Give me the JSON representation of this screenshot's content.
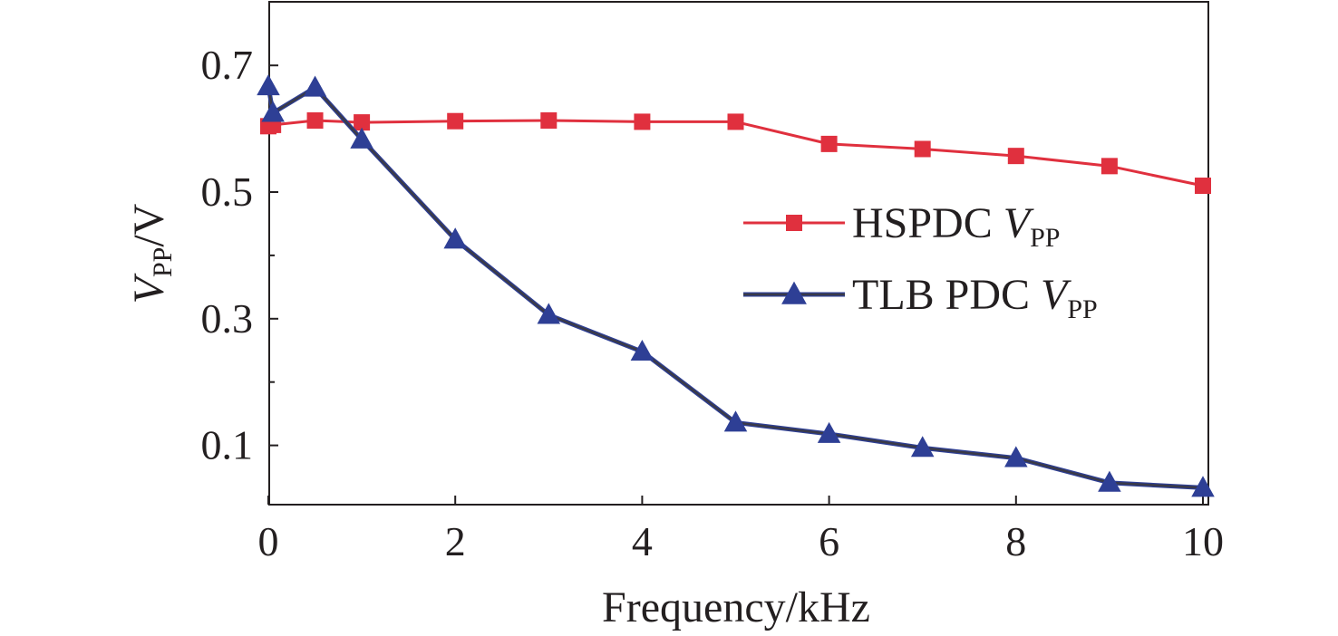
{
  "chart_data": {
    "type": "line",
    "xlabel": "Frequency/kHz",
    "ylabel": {
      "main": "V",
      "sub": "PP",
      "suffix": "/V"
    },
    "xlim": [
      0,
      10
    ],
    "ylim": [
      0.005,
      0.805
    ],
    "xticks": [
      0,
      2,
      4,
      6,
      8,
      10
    ],
    "xtick_labels": [
      "0",
      "2",
      "4",
      "6",
      "8",
      "10"
    ],
    "yticks": [
      0.1,
      0.3,
      0.5,
      0.7
    ],
    "ytick_labels": [
      "0.1",
      "0.3",
      "0.5",
      "0.7"
    ],
    "grid": false,
    "legend_position": "center-right",
    "series": [
      {
        "name": "HSPDC V_PP",
        "label_prefix": "HSPDC ",
        "label_var": "V",
        "label_sub": "PP",
        "color": "#e0303e",
        "marker": "square",
        "x": [
          0,
          0.05,
          0.5,
          1,
          2,
          3,
          4,
          5,
          6,
          7,
          8,
          9,
          10
        ],
        "y": [
          0.604,
          0.606,
          0.613,
          0.61,
          0.612,
          0.613,
          0.611,
          0.611,
          0.576,
          0.568,
          0.557,
          0.541,
          0.51
        ]
      },
      {
        "name": "TLB PDC V_PP",
        "label_prefix": "TLB PDC ",
        "label_var": "V",
        "label_sub": "PP",
        "color": "#2e3f95",
        "line_color": "#3a3a48",
        "marker": "triangle",
        "x": [
          0,
          0.05,
          0.5,
          1,
          2,
          3,
          4,
          5,
          6,
          7,
          8,
          9,
          10
        ],
        "y": [
          0.667,
          0.625,
          0.665,
          0.583,
          0.425,
          0.306,
          0.248,
          0.136,
          0.118,
          0.096,
          0.08,
          0.041,
          0.033
        ]
      }
    ]
  }
}
